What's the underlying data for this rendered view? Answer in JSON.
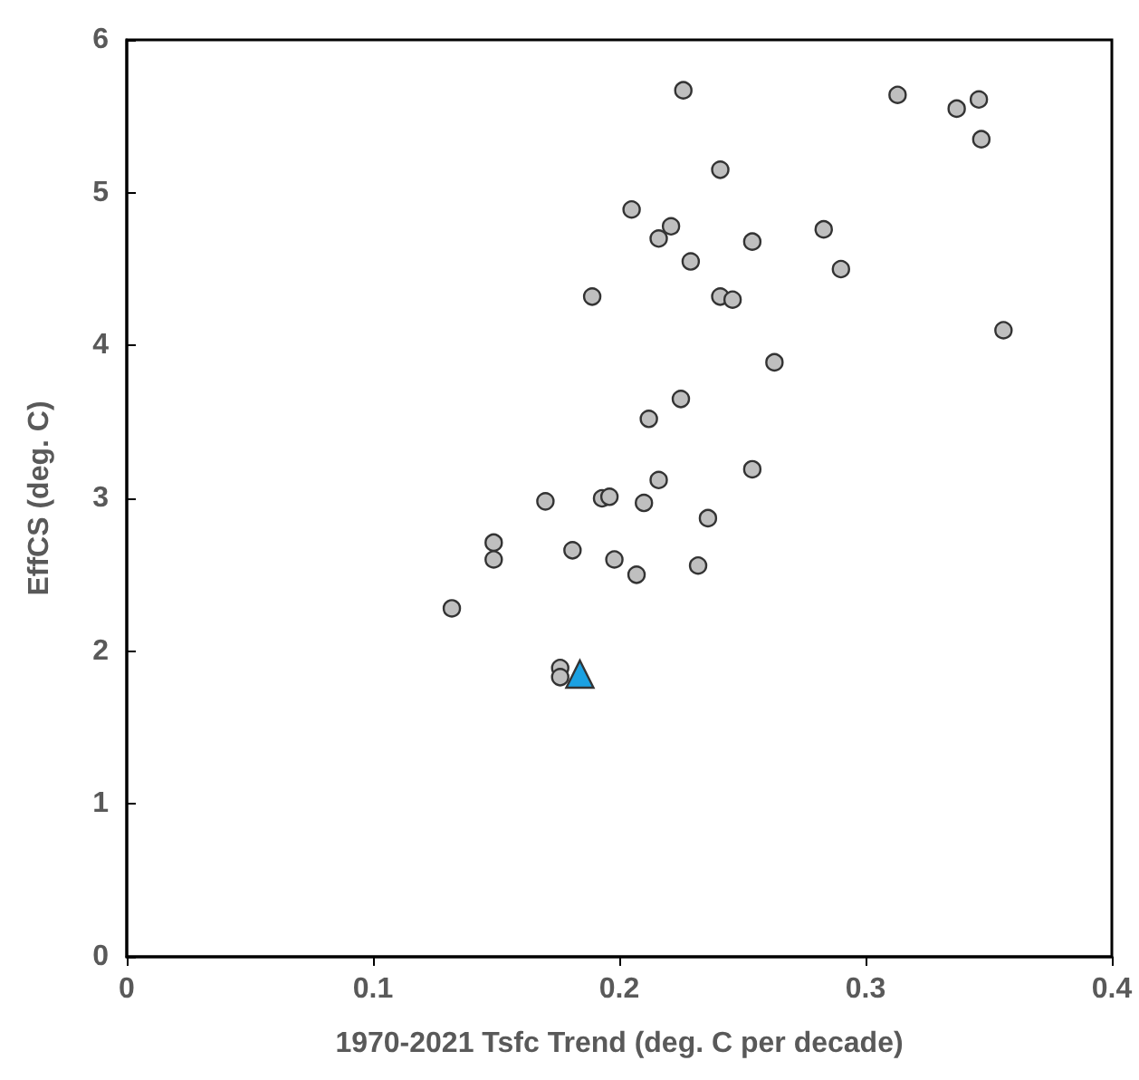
{
  "chart_data": {
    "type": "scatter",
    "xlabel": "1970-2021 Tsfc Trend (deg. C per decade)",
    "ylabel": "EffCS (deg. C)",
    "xlim": [
      0,
      0.4
    ],
    "xticks": [
      0,
      0.1,
      0.2,
      0.3,
      0.4
    ],
    "ylim": [
      0,
      6
    ],
    "yticks": [
      0,
      1,
      2,
      3,
      4,
      5,
      6
    ],
    "grid": false,
    "series": [
      {
        "color": "#bfbfbf",
        "marker": "circle",
        "x": [
          0.226,
          0.313,
          0.337,
          0.346,
          0.347,
          0.241,
          0.205,
          0.221,
          0.216,
          0.254,
          0.283,
          0.229,
          0.29,
          0.189,
          0.241,
          0.246,
          0.356,
          0.263,
          0.225,
          0.212,
          0.254,
          0.216,
          0.17,
          0.193,
          0.196,
          0.21,
          0.236,
          0.149,
          0.149,
          0.181,
          0.198,
          0.207,
          0.232,
          0.132,
          0.176,
          0.176
        ],
        "values": [
          5.67,
          5.64,
          5.55,
          5.61,
          5.35,
          5.15,
          4.89,
          4.78,
          4.7,
          4.68,
          4.76,
          4.55,
          4.5,
          4.32,
          4.32,
          4.3,
          4.1,
          3.89,
          3.65,
          3.52,
          3.19,
          3.12,
          2.98,
          3.0,
          3.01,
          2.97,
          2.87,
          2.71,
          2.6,
          2.66,
          2.6,
          2.5,
          2.56,
          2.28,
          1.89,
          1.83
        ]
      },
      {
        "color": "#1ba1e2",
        "marker": "triangle",
        "x": [
          0.184
        ],
        "values": [
          1.85
        ]
      }
    ]
  }
}
